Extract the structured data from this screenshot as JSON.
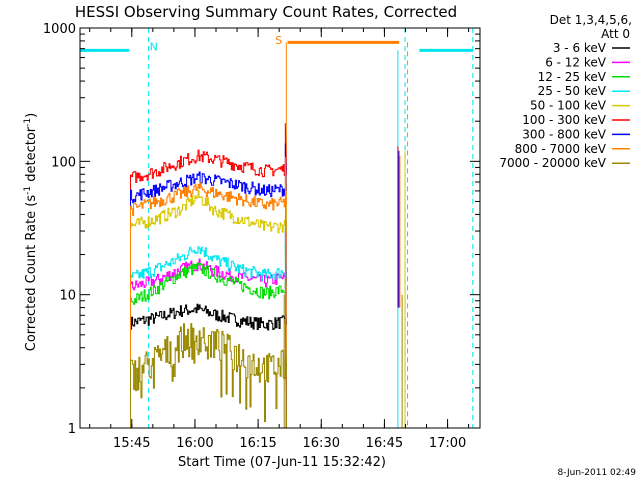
{
  "colors": {
    "background": "#ffffff",
    "axis": "#000000",
    "cyan_marker": "#00e5ee",
    "orange_marker": "#ff7f00",
    "olive_marker": "#998800",
    "yellow_marker": "#d8c800"
  },
  "footer": {
    "timestamp": "8-Jun-2011 02:49"
  },
  "chart_data": {
    "type": "line",
    "title": "HESSI Observing Summary Count Rates, Corrected",
    "xlabel": "Start Time (07-Jun-11 15:32:42)",
    "ylabel_main": "Corrected Count Rate (s",
    "ylabel_sup1": "-1",
    "ylabel_mid": " detector",
    "ylabel_sup2": "-1",
    "ylabel_end": ")",
    "x_unit": "minutes after 15:32:42",
    "xlim": [
      0,
      95
    ],
    "ylim": [
      1,
      1000
    ],
    "yscale": "log",
    "grid": false,
    "legend_placement": "right",
    "xticks": [
      {
        "value": 12.3,
        "label": "15:45"
      },
      {
        "value": 27.3,
        "label": "16:00"
      },
      {
        "value": 42.3,
        "label": "16:15"
      },
      {
        "value": 57.3,
        "label": "16:30"
      },
      {
        "value": 72.3,
        "label": "16:45"
      },
      {
        "value": 87.3,
        "label": "17:00"
      }
    ],
    "yticks": [
      {
        "value": 1,
        "label": "1"
      },
      {
        "value": 10,
        "label": "10"
      },
      {
        "value": 100,
        "label": "100"
      },
      {
        "value": 1000,
        "label": "1000"
      }
    ],
    "legend": {
      "header1": "Det 1,3,4,5,6,",
      "header2": "Att 0",
      "entries": [
        {
          "label": "3 - 6 keV",
          "color": "#000000"
        },
        {
          "label": "6 - 12 keV",
          "color": "#ff00ff"
        },
        {
          "label": "12 - 25 keV",
          "color": "#00dd00"
        },
        {
          "label": "25 - 50 keV",
          "color": "#00e5ee"
        },
        {
          "label": "50 - 100 keV",
          "color": "#d8c800"
        },
        {
          "label": "100 - 300 keV",
          "color": "#ff0000"
        },
        {
          "label": "300 - 800 keV",
          "color": "#0000ff"
        },
        {
          "label": "800 - 7000 keV",
          "color": "#ff7f00"
        },
        {
          "label": "7000 - 20000 keV",
          "color": "#998800"
        }
      ]
    },
    "segment_start": 12.0,
    "segment_end": 49.0,
    "series": [
      {
        "name": "3 - 6 keV",
        "color": "#000000",
        "values": [
          [
            12.5,
            6.2
          ],
          [
            18,
            6.7
          ],
          [
            24,
            7.6
          ],
          [
            28,
            7.8
          ],
          [
            32,
            7.1
          ],
          [
            38,
            6.4
          ],
          [
            44,
            6.0
          ],
          [
            48.8,
            6.3
          ]
        ]
      },
      {
        "name": "6 - 12 keV",
        "color": "#ff00ff",
        "values": [
          [
            12.5,
            11.5
          ],
          [
            18,
            12.8
          ],
          [
            24,
            15.5
          ],
          [
            28,
            17
          ],
          [
            32,
            15
          ],
          [
            38,
            13.5
          ],
          [
            44,
            12.6
          ],
          [
            48.8,
            13.5
          ]
        ]
      },
      {
        "name": "12 - 25 keV",
        "color": "#00dd00",
        "values": [
          [
            12.5,
            9.0
          ],
          [
            18,
            11.0
          ],
          [
            24,
            14.5
          ],
          [
            28,
            16
          ],
          [
            32,
            14
          ],
          [
            38,
            11.8
          ],
          [
            44,
            10.3
          ],
          [
            48.8,
            11
          ]
        ]
      },
      {
        "name": "25 - 50 keV",
        "color": "#00e5ee",
        "values": [
          [
            12.5,
            13.5
          ],
          [
            18,
            15.5
          ],
          [
            24,
            19
          ],
          [
            28,
            23
          ],
          [
            32,
            18.5
          ],
          [
            38,
            15.5
          ],
          [
            44,
            14
          ],
          [
            48.8,
            15
          ]
        ]
      },
      {
        "name": "50 - 100 keV",
        "color": "#d8c800",
        "values": [
          [
            12.5,
            33
          ],
          [
            18,
            37
          ],
          [
            24,
            44
          ],
          [
            28,
            55
          ],
          [
            32,
            43
          ],
          [
            38,
            37
          ],
          [
            44,
            32
          ],
          [
            48.8,
            33
          ]
        ]
      },
      {
        "name": "100 - 300 keV",
        "color": "#ff0000",
        "values": [
          [
            12.5,
            76
          ],
          [
            18,
            84
          ],
          [
            24,
            100
          ],
          [
            28,
            110
          ],
          [
            32,
            104
          ],
          [
            38,
            93
          ],
          [
            44,
            85
          ],
          [
            48.8,
            88
          ]
        ]
      },
      {
        "name": "300 - 800 keV",
        "color": "#0000ff",
        "values": [
          [
            12.5,
            55
          ],
          [
            18,
            61
          ],
          [
            24,
            70
          ],
          [
            28,
            76
          ],
          [
            32,
            72
          ],
          [
            38,
            66
          ],
          [
            44,
            60
          ],
          [
            48.8,
            62
          ]
        ]
      },
      {
        "name": "800 - 7000 keV",
        "color": "#ff7f00",
        "values": [
          [
            12.5,
            44
          ],
          [
            18,
            50
          ],
          [
            24,
            57
          ],
          [
            28,
            63
          ],
          [
            32,
            58
          ],
          [
            38,
            52
          ],
          [
            44,
            47
          ],
          [
            48.8,
            49
          ]
        ]
      },
      {
        "name": "7000 - 20000 keV",
        "color": "#998800",
        "values": [
          [
            12.5,
            2.6
          ],
          [
            18,
            3.3
          ],
          [
            24,
            4.6
          ],
          [
            28,
            5.0
          ],
          [
            32,
            4.4
          ],
          [
            38,
            3.5
          ],
          [
            44,
            2.8
          ],
          [
            48.8,
            3.0
          ]
        ]
      }
    ],
    "spike": {
      "x": 75.5,
      "values": [
        130,
        120,
        110
      ]
    },
    "annotations": [
      {
        "text": "N",
        "x": 17.5,
        "y": 680,
        "color": "#00e5ee"
      },
      {
        "text": "S",
        "x": 47.2,
        "y": 760,
        "color": "#ff7f00"
      }
    ],
    "markers": {
      "cyan_bars": [
        [
          0,
          11.7,
          680
        ],
        [
          80.6,
          93.3,
          680
        ]
      ],
      "orange_bar": [
        49.3,
        75.8,
        780
      ],
      "cyan_dashed": [
        16.3,
        77.2,
        93.3
      ],
      "cyan_solid": [
        0,
        75.5
      ],
      "orange_solid": [
        49.0
      ],
      "orange_dashed": [
        77.8
      ],
      "olive_solid": [
        48.5,
        76.5
      ]
    }
  }
}
